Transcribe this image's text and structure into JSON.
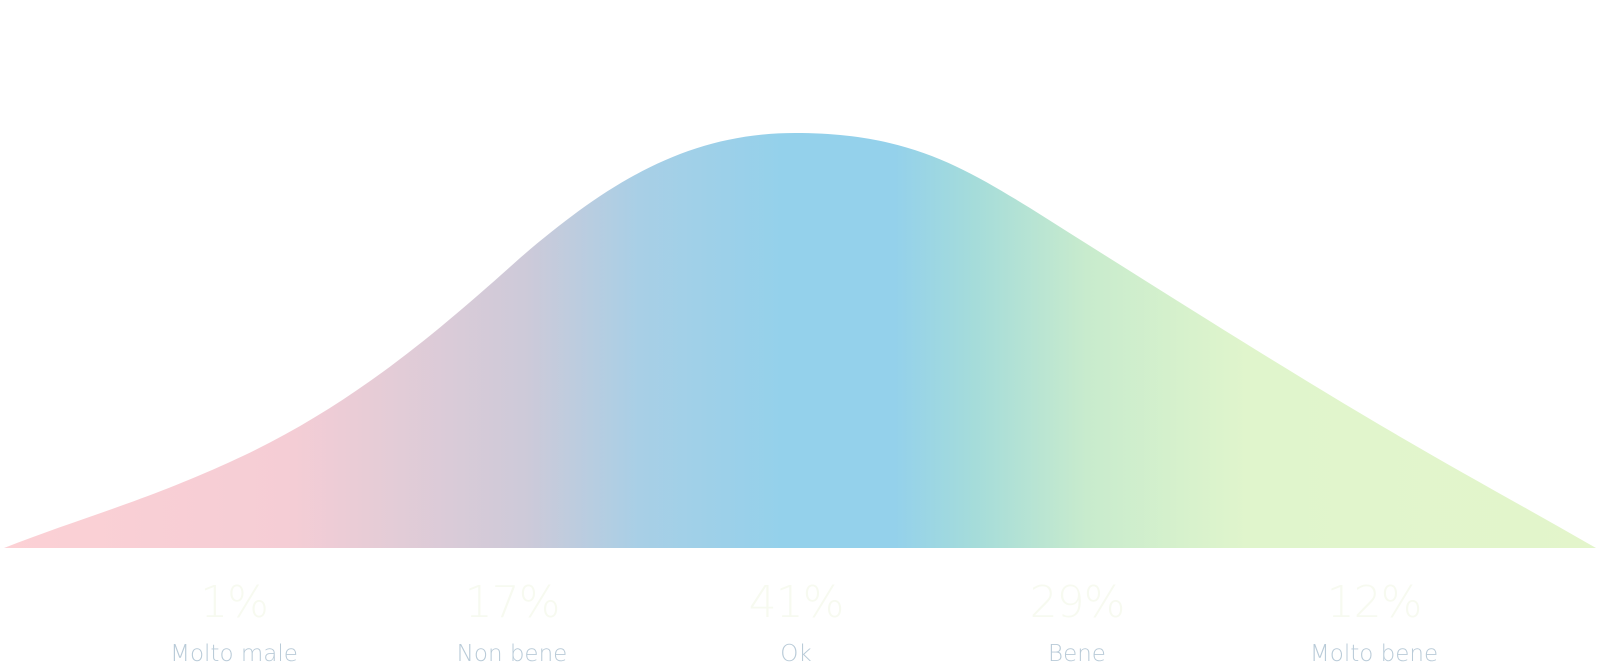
{
  "chart_data": {
    "type": "area",
    "title": "",
    "xlabel": "",
    "ylabel": "",
    "categories": [
      "Molto male",
      "Non bene",
      "Ok",
      "Bene",
      "Molto bene"
    ],
    "value_labels": [
      "1%",
      "17%",
      "41%",
      "29%",
      "12%"
    ],
    "values": [
      1,
      17,
      41,
      29,
      12
    ],
    "grid": false,
    "legend": "none",
    "colors": {
      "category_label": "#b9cbd8",
      "value_label": "#f7faf0",
      "gradient": [
        "#fcd1d5",
        "#f5cdd5",
        "#cdcad9",
        "#a8cfe6",
        "#94d1eb",
        "#94d1eb",
        "#a5dcda",
        "#c8ebcd",
        "#e0f5cc",
        "#e3f5cb"
      ]
    }
  }
}
